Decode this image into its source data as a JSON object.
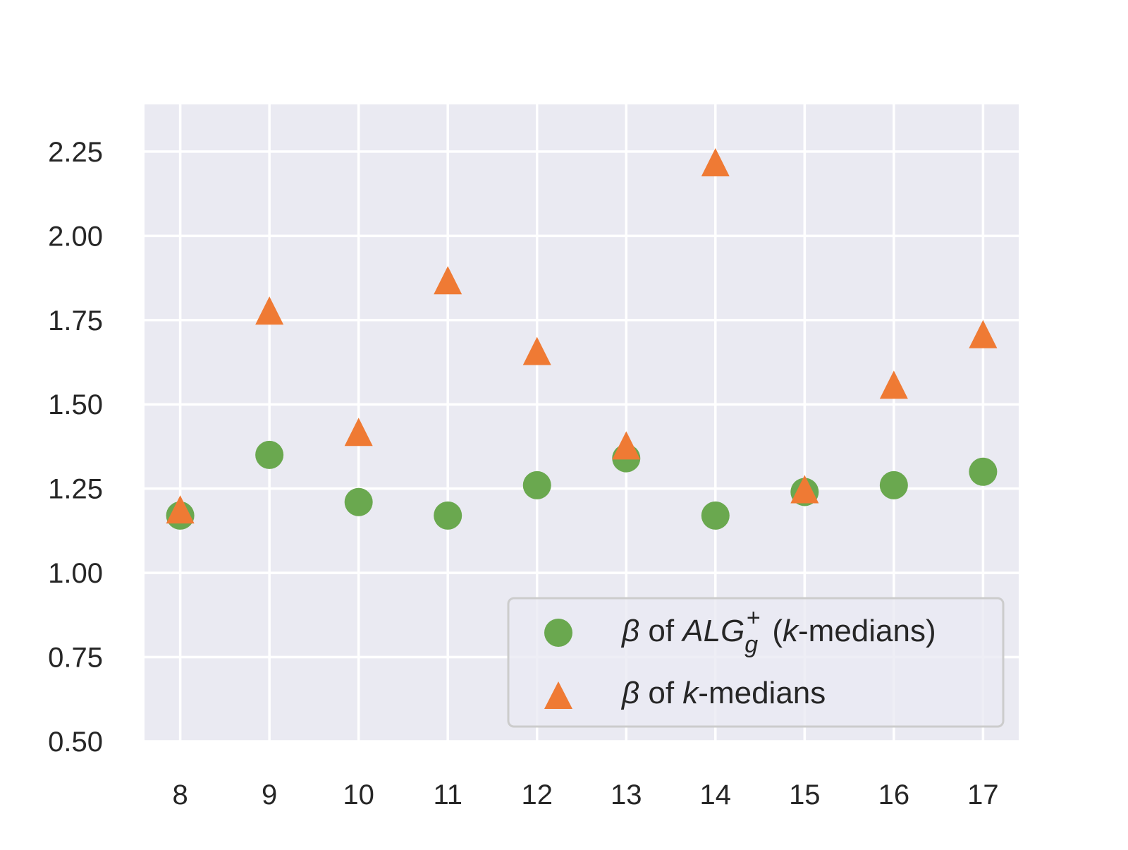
{
  "chart_data": {
    "type": "scatter",
    "title": "",
    "xlabel": "",
    "ylabel": "",
    "x": [
      8,
      9,
      10,
      11,
      12,
      13,
      14,
      15,
      16,
      17
    ],
    "xlim": [
      7.6,
      17.4
    ],
    "ylim": [
      0.5,
      2.39
    ],
    "x_ticks": [
      "8",
      "9",
      "10",
      "11",
      "12",
      "13",
      "14",
      "15",
      "16",
      "17"
    ],
    "y_ticks": [
      0.5,
      0.75,
      1.0,
      1.25,
      1.5,
      1.75,
      2.0,
      2.25
    ],
    "y_tick_labels": [
      "0.50",
      "0.75",
      "1.00",
      "1.25",
      "1.50",
      "1.75",
      "2.00",
      "2.25"
    ],
    "grid": true,
    "background": "#eaeaf2",
    "grid_color": "#ffffff",
    "legend_position": "lower-right",
    "series": [
      {
        "name": "β of ALG_g^+ (k-medians)",
        "legend": {
          "beta": "β",
          "of": " of ",
          "alg": "ALG",
          "sub": "g",
          "sup": "+",
          "open": " (",
          "k": "k",
          "rest": "-medians)"
        },
        "marker": "circle",
        "color": "#6aa84f",
        "values": [
          1.17,
          1.35,
          1.21,
          1.17,
          1.26,
          1.34,
          1.17,
          1.24,
          1.26,
          1.3
        ]
      },
      {
        "name": "β of k-medians",
        "legend": {
          "beta": "β",
          "of": " of ",
          "k": "k",
          "rest": "-medians"
        },
        "marker": "triangle",
        "color": "#ef7a34",
        "values": [
          1.18,
          1.77,
          1.41,
          1.86,
          1.65,
          1.37,
          2.21,
          1.24,
          1.55,
          1.7
        ]
      }
    ]
  }
}
